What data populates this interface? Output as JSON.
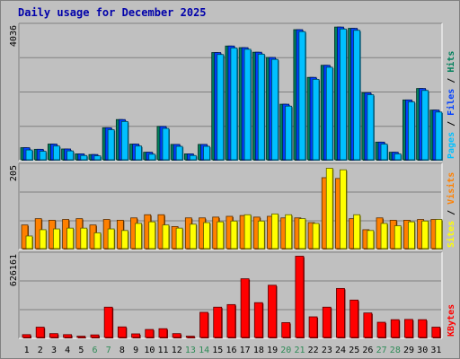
{
  "title": "Daily usage for December 2025",
  "colors": {
    "hits": "#00805c",
    "files": "#0040ff",
    "pages": "#00c0ff",
    "visits": "#ff8000",
    "sites": "#ffff00",
    "kbytes": "#ff0000",
    "weekend_label": "#2e8b57",
    "weekday_label": "#000000"
  },
  "chart_data": [
    {
      "type": "bar",
      "panel": "hits-files-pages",
      "ymax_label": "4036",
      "ylim": [
        0,
        4036
      ],
      "legend": [
        "Pages",
        "Files",
        "Hits"
      ],
      "categories": [
        "1",
        "2",
        "3",
        "4",
        "5",
        "6",
        "7",
        "8",
        "9",
        "10",
        "11",
        "12",
        "13",
        "14",
        "15",
        "16",
        "17",
        "18",
        "19",
        "20",
        "21",
        "22",
        "23",
        "24",
        "25",
        "26",
        "27",
        "28",
        "29",
        "30",
        "31"
      ],
      "series": [
        {
          "name": "Hits",
          "values": [
            370,
            320,
            480,
            330,
            180,
            160,
            980,
            1230,
            480,
            230,
            1020,
            470,
            180,
            470,
            3280,
            3480,
            3430,
            3290,
            3130,
            1700,
            3980,
            2520,
            2890,
            4060,
            4020,
            2050,
            540,
            230,
            1830,
            2180,
            1520
          ]
        },
        {
          "name": "Files",
          "values": [
            370,
            320,
            480,
            330,
            180,
            160,
            980,
            1230,
            480,
            230,
            1020,
            470,
            180,
            470,
            3280,
            3480,
            3430,
            3290,
            3130,
            1700,
            3980,
            2520,
            2890,
            4060,
            4020,
            2050,
            540,
            230,
            1830,
            2180,
            1520
          ]
        },
        {
          "name": "Pages",
          "values": [
            300,
            260,
            420,
            270,
            130,
            120,
            920,
            1170,
            420,
            170,
            960,
            410,
            130,
            410,
            3220,
            3420,
            3380,
            3230,
            3070,
            1640,
            3920,
            2460,
            2830,
            4000,
            3960,
            1990,
            480,
            180,
            1770,
            2120,
            1460
          ]
        }
      ]
    },
    {
      "type": "bar",
      "panel": "visits-sites",
      "ymax_label": "205",
      "ylim": [
        0,
        205
      ],
      "legend": [
        "Sites",
        "Visits"
      ],
      "categories": [
        "1",
        "2",
        "3",
        "4",
        "5",
        "6",
        "7",
        "8",
        "9",
        "10",
        "11",
        "12",
        "13",
        "14",
        "15",
        "16",
        "17",
        "18",
        "19",
        "20",
        "21",
        "22",
        "23",
        "24",
        "25",
        "26",
        "27",
        "28",
        "29",
        "30",
        "31"
      ],
      "series": [
        {
          "name": "Visits",
          "values": [
            60,
            76,
            72,
            74,
            76,
            60,
            74,
            72,
            78,
            86,
            86,
            56,
            78,
            78,
            80,
            82,
            84,
            80,
            82,
            78,
            78,
            66,
            180,
            178,
            76,
            48,
            78,
            72,
            72,
            74,
            74
          ]
        },
        {
          "name": "Sites",
          "values": [
            32,
            48,
            50,
            52,
            52,
            40,
            50,
            46,
            64,
            68,
            60,
            52,
            62,
            66,
            68,
            70,
            86,
            70,
            88,
            86,
            76,
            64,
            204,
            200,
            86,
            46,
            64,
            58,
            68,
            70,
            74
          ]
        }
      ]
    },
    {
      "type": "bar",
      "panel": "kbytes",
      "ymax_label": "626161",
      "ylim": [
        0,
        626161
      ],
      "legend": [
        "KBytes"
      ],
      "categories": [
        "1",
        "2",
        "3",
        "4",
        "5",
        "6",
        "7",
        "8",
        "9",
        "10",
        "11",
        "12",
        "13",
        "14",
        "15",
        "16",
        "17",
        "18",
        "19",
        "20",
        "21",
        "22",
        "23",
        "24",
        "25",
        "26",
        "27",
        "28",
        "29",
        "30",
        "31"
      ],
      "series": [
        {
          "name": "KBytes",
          "values": [
            22000,
            80000,
            30000,
            22000,
            10000,
            20000,
            235000,
            82000,
            28000,
            62000,
            68000,
            30000,
            10000,
            195000,
            235000,
            255000,
            455000,
            270000,
            405000,
            115000,
            630000,
            160000,
            235000,
            380000,
            290000,
            190000,
            118000,
            138000,
            140000,
            138000,
            80000
          ]
        }
      ]
    }
  ]
}
